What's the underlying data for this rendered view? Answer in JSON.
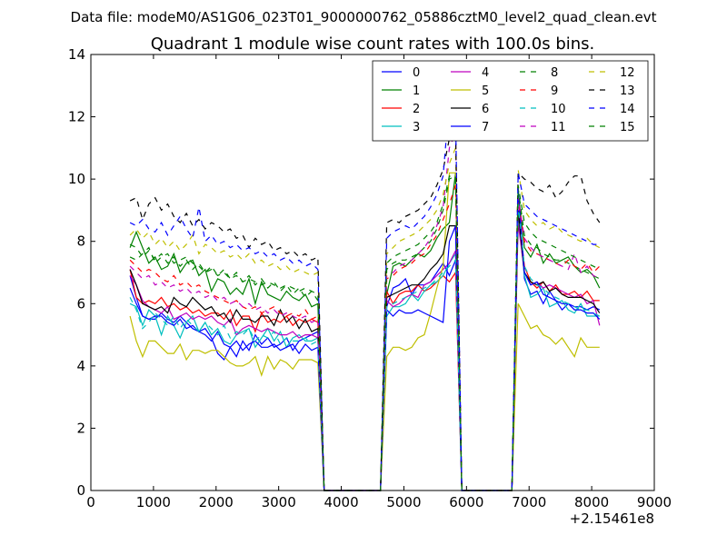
{
  "chart_data": {
    "type": "line",
    "suptitle": "Data file: modeM0/AS1G06_023T01_9000000762_05886cztM0_level2_quad_clean.evt",
    "title": "Quadrant 1 module wise count rates with 100.0s bins.",
    "xlabel": "",
    "ylabel": "",
    "x_offset_label": "+2.15461e8",
    "xlim": [
      0,
      9000
    ],
    "ylim": [
      0,
      14
    ],
    "xticks": [
      0,
      1000,
      2000,
      3000,
      4000,
      5000,
      6000,
      7000,
      8000,
      9000
    ],
    "yticks": [
      0,
      2,
      4,
      6,
      8,
      10,
      12,
      14
    ],
    "legend_position": "top-right",
    "segments": [
      {
        "start": 626,
        "n": 31,
        "step": 100
      },
      {
        "start": 4726,
        "n": 12,
        "step": 100
      },
      {
        "start": 6826,
        "n": 14,
        "step": 100
      }
    ],
    "zero_x": [
      3726,
      3826,
      3926,
      4026,
      4126,
      4226,
      4326,
      4426,
      4526,
      4626,
      5926,
      6026,
      6126,
      6226,
      6326,
      6426,
      6526,
      6626,
      6726
    ],
    "series": [
      {
        "name": "0",
        "color": "#0000ff",
        "dash": false,
        "s1": [
          6.9,
          6.2,
          5.6,
          5.5,
          5.5,
          5.7,
          5.5,
          5.4,
          5.6,
          5.4,
          5.2,
          5.1,
          5.2,
          4.9,
          4.4,
          4.2,
          4.6,
          4.3,
          4.8,
          4.5,
          5.0,
          4.7,
          4.9,
          4.6,
          4.7,
          4.9,
          4.5,
          4.8,
          4.9,
          5.0,
          5.1
        ],
        "s2": [
          5.9,
          6.5,
          6.6,
          6.8,
          6.3,
          6.6,
          6.6,
          6.7,
          7.0,
          7.3,
          6.9,
          7.4
        ],
        "s3": [
          9.5,
          6.8,
          6.3,
          6.4,
          6.0,
          6.4,
          6.1,
          5.8,
          6.0,
          5.9,
          5.9,
          5.8,
          5.9,
          5.8
        ]
      },
      {
        "name": "1",
        "color": "#008000",
        "dash": false,
        "s1": [
          7.8,
          8.3,
          7.8,
          7.3,
          7.5,
          7.1,
          7.2,
          7.6,
          7.0,
          7.3,
          7.4,
          6.9,
          7.1,
          6.4,
          6.8,
          6.7,
          6.3,
          6.5,
          6.3,
          6.8,
          6.0,
          6.7,
          6.3,
          6.2,
          6.1,
          6.4,
          6.2,
          6.1,
          6.3,
          5.9,
          6.0
        ],
        "s2": [
          6.3,
          7.2,
          7.3,
          7.2,
          7.4,
          7.6,
          7.5,
          7.7,
          8.1,
          8.4,
          8.6,
          10.2
        ],
        "s3": [
          9.6,
          7.8,
          7.5,
          7.9,
          7.3,
          7.6,
          7.3,
          7.4,
          7.5,
          7.2,
          7.0,
          7.1,
          6.9,
          6.5
        ]
      },
      {
        "name": "2",
        "color": "#ff0000",
        "dash": false,
        "s1": [
          7.1,
          6.2,
          6.0,
          6.1,
          6.0,
          6.2,
          5.9,
          6.0,
          5.8,
          5.9,
          5.7,
          5.8,
          5.6,
          5.7,
          5.7,
          5.5,
          5.8,
          5.3,
          5.6,
          5.6,
          5.1,
          5.7,
          5.4,
          5.5,
          5.4,
          5.6,
          5.3,
          5.5,
          5.4,
          5.5,
          5.4
        ],
        "s2": [
          6.4,
          6.0,
          6.3,
          6.4,
          6.4,
          6.6,
          6.4,
          6.5,
          6.7,
          6.9,
          6.7,
          7.0
        ],
        "s3": [
          9.0,
          7.2,
          6.7,
          6.5,
          6.7,
          6.4,
          6.6,
          6.3,
          6.3,
          6.4,
          6.2,
          6.4,
          6.1,
          6.1
        ]
      },
      {
        "name": "3",
        "color": "#00bfbf",
        "dash": false,
        "s1": [
          6.0,
          5.9,
          5.3,
          5.8,
          5.6,
          5.0,
          5.6,
          5.3,
          4.9,
          5.4,
          5.6,
          5.1,
          5.4,
          5.0,
          5.2,
          4.8,
          4.7,
          5.0,
          5.1,
          5.2,
          4.6,
          4.9,
          5.2,
          4.8,
          5.1,
          4.6,
          4.9,
          5.0,
          4.8,
          4.8,
          4.9
        ],
        "s2": [
          5.6,
          5.9,
          5.9,
          6.0,
          6.3,
          6.1,
          6.4,
          6.6,
          6.7,
          6.9,
          7.3,
          7.6
        ],
        "s3": [
          8.8,
          6.9,
          6.2,
          6.3,
          6.5,
          5.9,
          6.0,
          6.1,
          5.8,
          5.7,
          6.0,
          5.6,
          5.6,
          5.6
        ]
      },
      {
        "name": "4",
        "color": "#bf00bf",
        "dash": false,
        "s1": [
          6.9,
          6.6,
          6.1,
          5.9,
          5.8,
          5.7,
          5.9,
          5.5,
          5.6,
          5.7,
          5.5,
          5.6,
          5.5,
          5.6,
          5.4,
          5.3,
          5.5,
          5.0,
          5.2,
          5.3,
          5.2,
          5.1,
          5.2,
          5.1,
          5.0,
          5.0,
          5.1,
          4.9,
          5.0,
          5.0,
          4.9
        ],
        "s2": [
          6.1,
          5.9,
          6.0,
          6.2,
          6.3,
          6.2,
          6.6,
          6.7,
          6.9,
          7.1,
          7.3,
          7.7
        ],
        "s3": [
          8.6,
          7.0,
          6.6,
          6.7,
          6.5,
          6.6,
          6.5,
          6.4,
          6.3,
          6.2,
          6.3,
          6.0,
          6.1,
          5.3
        ]
      },
      {
        "name": "5",
        "color": "#bfbf00",
        "dash": false,
        "s1": [
          5.6,
          4.8,
          4.3,
          4.8,
          4.8,
          4.6,
          4.4,
          4.4,
          4.7,
          4.2,
          4.5,
          4.5,
          4.4,
          4.5,
          4.5,
          4.3,
          4.1,
          4.0,
          4.0,
          4.1,
          4.3,
          3.7,
          4.3,
          3.9,
          4.2,
          4.1,
          3.9,
          4.2,
          4.2,
          4.2,
          4.1
        ],
        "s2": [
          4.3,
          4.6,
          4.6,
          4.5,
          4.6,
          4.9,
          5.0,
          5.7,
          6.5,
          7.2,
          10.2,
          10.2
        ],
        "s3": [
          6.0,
          5.6,
          5.2,
          5.3,
          5.0,
          4.9,
          4.7,
          4.9,
          4.6,
          4.3,
          4.9,
          4.6,
          4.6,
          4.6
        ]
      },
      {
        "name": "6",
        "color": "#000000",
        "dash": false,
        "s1": [
          7.1,
          6.6,
          6.0,
          5.9,
          5.8,
          5.9,
          5.7,
          6.2,
          6.0,
          5.9,
          6.2,
          6.0,
          5.8,
          5.9,
          5.6,
          5.7,
          5.4,
          5.8,
          5.5,
          5.5,
          5.4,
          5.6,
          5.6,
          5.3,
          5.8,
          5.4,
          5.6,
          5.2,
          5.5,
          5.1,
          5.2
        ],
        "s2": [
          6.2,
          6.3,
          6.4,
          6.5,
          6.6,
          6.6,
          6.8,
          7.1,
          7.3,
          7.6,
          8.5,
          8.5
        ],
        "s3": [
          9.0,
          7.0,
          6.7,
          6.6,
          6.7,
          6.4,
          6.5,
          6.3,
          6.2,
          6.2,
          6.2,
          6.1,
          6.0,
          5.7
        ]
      },
      {
        "name": "7",
        "color": "#0000ff",
        "dash": false,
        "s1": [
          6.5,
          6.0,
          5.6,
          5.5,
          5.6,
          5.6,
          5.4,
          5.3,
          5.5,
          5.2,
          5.3,
          5.1,
          5.0,
          4.8,
          5.1,
          4.7,
          4.6,
          4.8,
          4.5,
          4.7,
          4.8,
          4.6,
          4.6,
          4.7,
          4.5,
          4.6,
          4.7,
          4.4,
          4.7,
          4.5,
          4.6
        ],
        "s2": [
          5.8,
          5.6,
          5.8,
          5.7,
          5.7,
          5.8,
          5.7,
          5.6,
          5.5,
          5.4,
          8.0,
          8.5
        ],
        "s3": [
          9.6,
          7.0,
          6.6,
          6.7,
          6.3,
          6.2,
          6.1,
          6.0,
          6.0,
          5.8,
          5.8,
          5.7,
          5.7,
          5.5
        ]
      },
      {
        "name": "8",
        "color": "#008000",
        "dash": true,
        "s1": [
          7.5,
          7.4,
          7.6,
          7.8,
          7.3,
          7.5,
          7.6,
          7.3,
          7.4,
          7.5,
          7.3,
          7.2,
          7.0,
          7.1,
          6.9,
          7.0,
          6.8,
          6.9,
          6.7,
          6.8,
          6.7,
          6.6,
          6.7,
          6.6,
          6.5,
          6.6,
          6.5,
          6.4,
          6.5,
          6.4,
          6.3
        ],
        "s2": [
          7.1,
          7.3,
          7.4,
          7.4,
          7.5,
          7.6,
          7.8,
          8.0,
          8.4,
          9.0,
          10.0,
          10.1
        ],
        "s3": [
          9.7,
          8.2,
          7.9,
          7.8,
          7.6,
          7.5,
          7.4,
          7.4,
          7.3,
          7.2,
          7.1,
          7.0,
          6.9,
          6.8
        ]
      },
      {
        "name": "9",
        "color": "#ff0000",
        "dash": true,
        "s1": [
          7.4,
          7.2,
          7.0,
          7.1,
          7.0,
          6.8,
          6.7,
          6.9,
          6.6,
          6.7,
          6.5,
          6.6,
          6.4,
          6.3,
          6.2,
          6.1,
          6.0,
          6.1,
          5.9,
          5.8,
          5.9,
          5.7,
          5.8,
          5.9,
          5.7,
          5.6,
          5.7,
          5.6,
          5.8,
          5.5,
          5.6
        ],
        "s2": [
          6.8,
          6.9,
          7.1,
          7.2,
          7.3,
          7.5,
          7.6,
          7.9,
          8.2,
          8.7,
          9.2,
          9.8
        ],
        "s3": [
          9.3,
          8.0,
          7.7,
          7.6,
          7.5,
          7.4,
          7.3,
          7.2,
          7.4,
          7.2,
          7.1,
          7.3,
          7.0,
          7.2
        ]
      },
      {
        "name": "10",
        "color": "#00bfbf",
        "dash": true,
        "s1": [
          6.2,
          5.8,
          5.2,
          5.4,
          5.7,
          5.5,
          5.3,
          5.6,
          5.2,
          5.5,
          5.3,
          5.1,
          5.4,
          5.2,
          5.0,
          5.3,
          4.9,
          5.1,
          5.0,
          5.2,
          4.8,
          5.0,
          4.9,
          5.1,
          4.7,
          4.9,
          4.8,
          4.8,
          4.9,
          4.7,
          4.8
        ],
        "s2": [
          5.9,
          6.0,
          6.1,
          6.2,
          6.3,
          6.4,
          6.5,
          6.6,
          6.8,
          7.0,
          7.2,
          7.4
        ],
        "s3": [
          9.2,
          7.2,
          6.8,
          6.6,
          6.5,
          6.3,
          6.2,
          6.1,
          6.0,
          5.9,
          5.8,
          5.8,
          5.7,
          5.6
        ]
      },
      {
        "name": "11",
        "color": "#bf00bf",
        "dash": true,
        "s1": [
          7.2,
          7.0,
          6.8,
          6.9,
          6.6,
          6.7,
          6.5,
          6.6,
          6.4,
          6.5,
          6.3,
          6.4,
          6.2,
          6.3,
          6.1,
          6.2,
          6.0,
          6.1,
          5.9,
          6.0,
          5.8,
          5.9,
          5.7,
          5.8,
          5.6,
          5.7,
          5.6,
          5.5,
          5.6,
          5.4,
          5.5
        ],
        "s2": [
          6.9,
          7.0,
          7.2,
          7.3,
          7.4,
          7.6,
          7.8,
          8.1,
          8.5,
          9.1,
          11.0,
          11.5
        ],
        "s3": [
          9.4,
          8.1,
          7.8,
          7.6,
          7.5,
          7.4,
          7.3,
          7.2,
          7.1,
          7.6,
          7.0,
          7.2,
          6.9,
          6.8
        ]
      },
      {
        "name": "12",
        "color": "#bfbf00",
        "dash": true,
        "s1": [
          8.2,
          8.4,
          8.1,
          8.3,
          7.9,
          8.1,
          7.8,
          8.0,
          7.7,
          7.9,
          8.2,
          7.6,
          7.9,
          7.8,
          7.6,
          7.7,
          7.5,
          7.6,
          7.4,
          7.6,
          7.3,
          7.4,
          7.2,
          7.3,
          7.1,
          7.2,
          7.0,
          7.1,
          7.0,
          6.9,
          7.0
        ],
        "s2": [
          7.6,
          7.8,
          8.0,
          8.1,
          8.2,
          8.3,
          8.5,
          8.7,
          9.0,
          9.5,
          10.5,
          11.0
        ],
        "s3": [
          10.3,
          9.0,
          8.7,
          8.5,
          8.6,
          8.4,
          8.5,
          8.3,
          8.2,
          8.1,
          8.0,
          8.1,
          7.9,
          7.8
        ]
      },
      {
        "name": "13",
        "color": "#000000",
        "dash": true,
        "s1": [
          9.3,
          9.4,
          8.7,
          9.2,
          9.4,
          9.0,
          9.2,
          8.8,
          8.6,
          8.9,
          8.5,
          8.7,
          8.4,
          8.6,
          8.5,
          8.3,
          8.4,
          8.1,
          8.2,
          7.8,
          8.1,
          7.9,
          8.0,
          7.7,
          7.8,
          7.6,
          7.7,
          7.5,
          7.6,
          7.4,
          7.5
        ],
        "s2": [
          8.6,
          8.7,
          8.6,
          8.8,
          8.9,
          9.0,
          9.2,
          9.4,
          9.8,
          10.3,
          11.3,
          11.6
        ],
        "s3": [
          10.2,
          10.0,
          9.9,
          9.7,
          9.6,
          9.8,
          9.4,
          9.6,
          9.9,
          10.1,
          10.1,
          9.3,
          8.9,
          8.6
        ]
      },
      {
        "name": "14",
        "color": "#0000ff",
        "dash": true,
        "s1": [
          8.6,
          8.5,
          8.7,
          8.4,
          8.3,
          8.6,
          8.2,
          8.5,
          8.8,
          8.4,
          8.1,
          9.1,
          8.0,
          8.2,
          7.9,
          8.0,
          7.8,
          7.9,
          7.7,
          7.8,
          7.6,
          7.7,
          7.5,
          7.6,
          7.4,
          7.5,
          7.3,
          7.4,
          7.2,
          7.3,
          7.1
        ],
        "s2": [
          8.1,
          8.3,
          8.4,
          8.5,
          8.4,
          8.6,
          8.8,
          9.1,
          9.5,
          10.1,
          12.5,
          12.0
        ],
        "s3": [
          10.2,
          9.2,
          9.0,
          8.8,
          8.7,
          8.6,
          8.5,
          8.4,
          8.3,
          8.2,
          8.1,
          8.0,
          7.9,
          7.9
        ]
      },
      {
        "name": "15",
        "color": "#008000",
        "dash": true,
        "s1": [
          7.9,
          7.8,
          7.5,
          7.7,
          7.4,
          7.6,
          7.3,
          7.5,
          7.2,
          7.4,
          7.1,
          7.3,
          7.0,
          7.2,
          6.9,
          7.1,
          6.8,
          7.0,
          6.7,
          6.9,
          6.6,
          6.8,
          6.5,
          6.7,
          6.4,
          6.6,
          6.3,
          6.5,
          6.2,
          6.4,
          6.1
        ],
        "s2": [
          7.3,
          7.5,
          7.6,
          7.7,
          7.8,
          7.9,
          8.1,
          8.3,
          8.6,
          9.2,
          10.1,
          10.0
        ],
        "s3": [
          9.8,
          8.6,
          8.3,
          8.1,
          8.0,
          7.9,
          7.8,
          7.7,
          7.6,
          7.5,
          7.4,
          7.3,
          7.2,
          7.1
        ]
      }
    ]
  }
}
